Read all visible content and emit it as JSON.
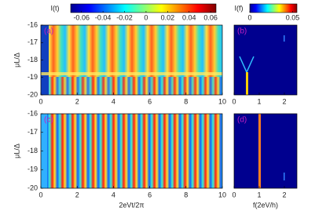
{
  "colorbars": [
    {
      "label": "I(t)",
      "lim": [
        -0.07,
        0.065
      ],
      "ticks": [
        -0.06,
        -0.04,
        -0.02,
        0,
        0.02,
        0.04,
        0.06
      ]
    },
    {
      "label": "I(f)",
      "lim": [
        0,
        0.055
      ],
      "ticks": [
        0,
        0.05
      ]
    }
  ],
  "chart_data": [
    {
      "type": "heatmap",
      "panel_label": "(a)",
      "ylabel": "μL/Δ",
      "xlim": [
        0,
        10
      ],
      "xticks": [
        0,
        2,
        4,
        6,
        8,
        10
      ],
      "ylim": [
        -20,
        -16
      ],
      "yticks": [
        -16,
        -17,
        -18,
        -19,
        -20
      ]
    },
    {
      "type": "heatmap",
      "panel_label": "(b)",
      "xlim": [
        0,
        2.5
      ],
      "xticks": [
        0,
        1,
        2
      ],
      "ylim": [
        -20,
        -16
      ]
    },
    {
      "type": "heatmap",
      "panel_label": "(c)",
      "ylabel": "μL/Δ",
      "xlabel": "2eVt/2π",
      "xlim": [
        0,
        10
      ],
      "xticks": [
        0,
        2,
        4,
        6,
        8,
        10
      ],
      "ylim": [
        -20,
        -16
      ],
      "yticks": [
        -16,
        -17,
        -18,
        -19,
        -20
      ]
    },
    {
      "type": "heatmap",
      "panel_label": "(d)",
      "xlabel": "f(2eV/h)",
      "xlim": [
        0,
        2.5
      ],
      "xticks": [
        0,
        1,
        2
      ],
      "ylim": [
        -20,
        -16
      ]
    }
  ]
}
